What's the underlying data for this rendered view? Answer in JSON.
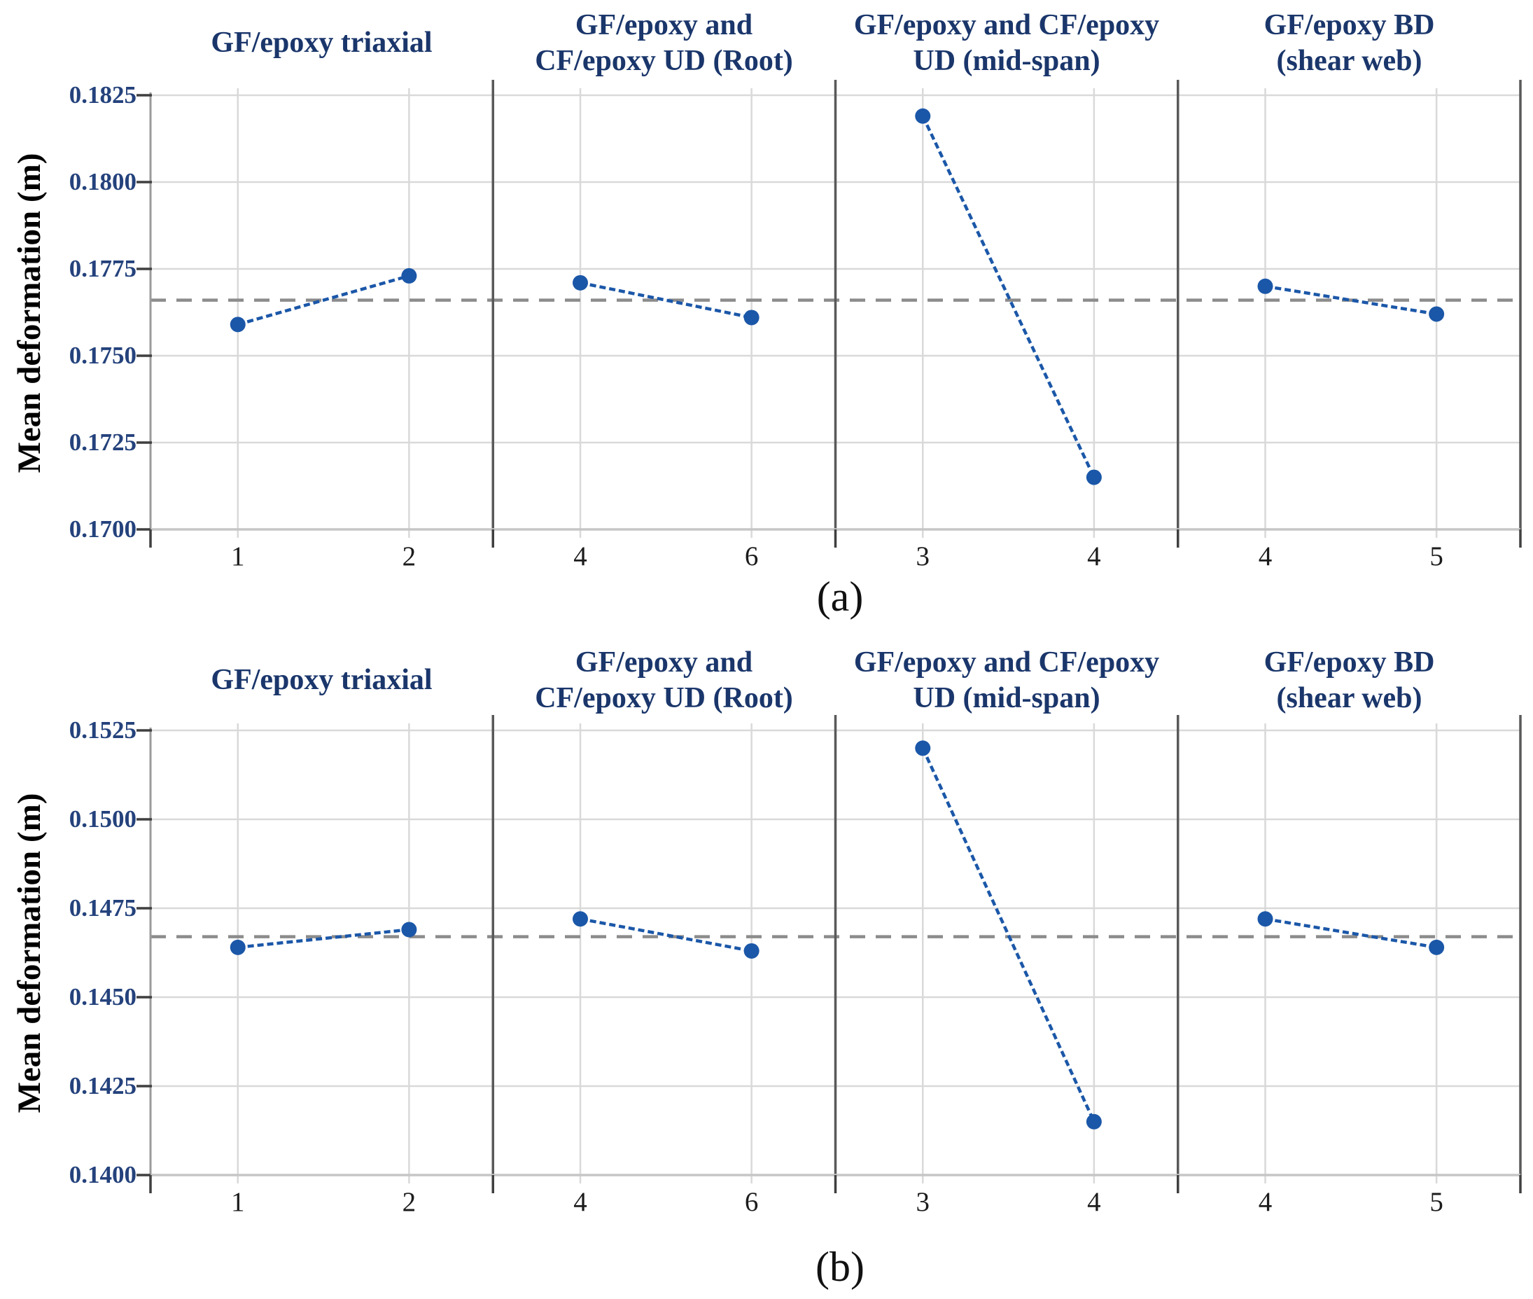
{
  "colors": {
    "title_navy": "#1a366b",
    "tick_navy": "#24427c",
    "series_blue": "#1b57a8",
    "mean_dash_gray": "#8c8c8c",
    "grid_gray": "#d9d9d9",
    "separator_gray": "#595959",
    "axis_light_gray": "#c6c6c6",
    "tick_dark_gray": "#3f3f3f"
  },
  "chart_data": [
    {
      "type": "line",
      "label": "(a)",
      "ylabel": "Mean deformation (m)",
      "ylim": [
        0.17,
        0.1825
      ],
      "ytick_step": 0.0025,
      "yticks": [
        "0.1825",
        "0.1800",
        "0.1775",
        "0.1750",
        "0.1725",
        "0.1700"
      ],
      "grand_mean_line": 0.1766,
      "grid": true,
      "panels": [
        {
          "title": "GF/epoxy triaxial",
          "categories": [
            "1",
            "2"
          ],
          "values": [
            0.1759,
            0.1773
          ]
        },
        {
          "title": "GF/epoxy and\nCF/epoxy UD (Root)",
          "categories": [
            "4",
            "6"
          ],
          "values": [
            0.1771,
            0.1761
          ]
        },
        {
          "title": "GF/epoxy and CF/epoxy\nUD (mid-span)",
          "categories": [
            "3",
            "4"
          ],
          "values": [
            0.1819,
            0.1715
          ]
        },
        {
          "title": "GF/epoxy BD\n(shear web)",
          "categories": [
            "4",
            "5"
          ],
          "values": [
            0.177,
            0.1762
          ]
        }
      ]
    },
    {
      "type": "line",
      "label": "(b)",
      "ylabel": "Mean deformation (m)",
      "ylim": [
        0.14,
        0.1525
      ],
      "ytick_step": 0.0025,
      "yticks": [
        "0.1525",
        "0.1500",
        "0.1475",
        "0.1450",
        "0.1425",
        "0.1400"
      ],
      "grand_mean_line": 0.1467,
      "grid": true,
      "panels": [
        {
          "title": "GF/epoxy triaxial",
          "categories": [
            "1",
            "2"
          ],
          "values": [
            0.1464,
            0.1469
          ]
        },
        {
          "title": "GF/epoxy and\nCF/epoxy UD (Root)",
          "categories": [
            "4",
            "6"
          ],
          "values": [
            0.1472,
            0.1463
          ]
        },
        {
          "title": "GF/epoxy and CF/epoxy\nUD (mid-span)",
          "categories": [
            "3",
            "4"
          ],
          "values": [
            0.152,
            0.1415
          ]
        },
        {
          "title": "GF/epoxy BD\n(shear web)",
          "categories": [
            "4",
            "5"
          ],
          "values": [
            0.1472,
            0.1464
          ]
        }
      ]
    }
  ]
}
